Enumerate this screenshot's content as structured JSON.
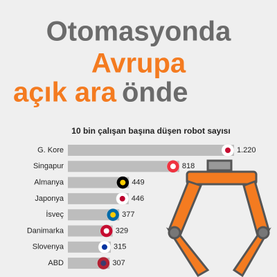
{
  "chart_data": {
    "type": "bar",
    "title": {
      "line1": "Otomasyonda",
      "line2": "Avrupa",
      "line3a": "açık ara",
      "line3b": "önde"
    },
    "subtitle": "10 bin çalışan başına düşen robot sayısı",
    "categories": [
      "G. Kore",
      "Singapur",
      "Almanya",
      "Japonya",
      "İsveç",
      "Danimarka",
      "Slovenya",
      "ABD"
    ],
    "values": [
      1220,
      818,
      449,
      446,
      377,
      329,
      315,
      307
    ],
    "value_labels": [
      "1.220",
      "818",
      "449",
      "446",
      "377",
      "329",
      "315",
      "307"
    ],
    "color": "#bdbdbd"
  }
}
